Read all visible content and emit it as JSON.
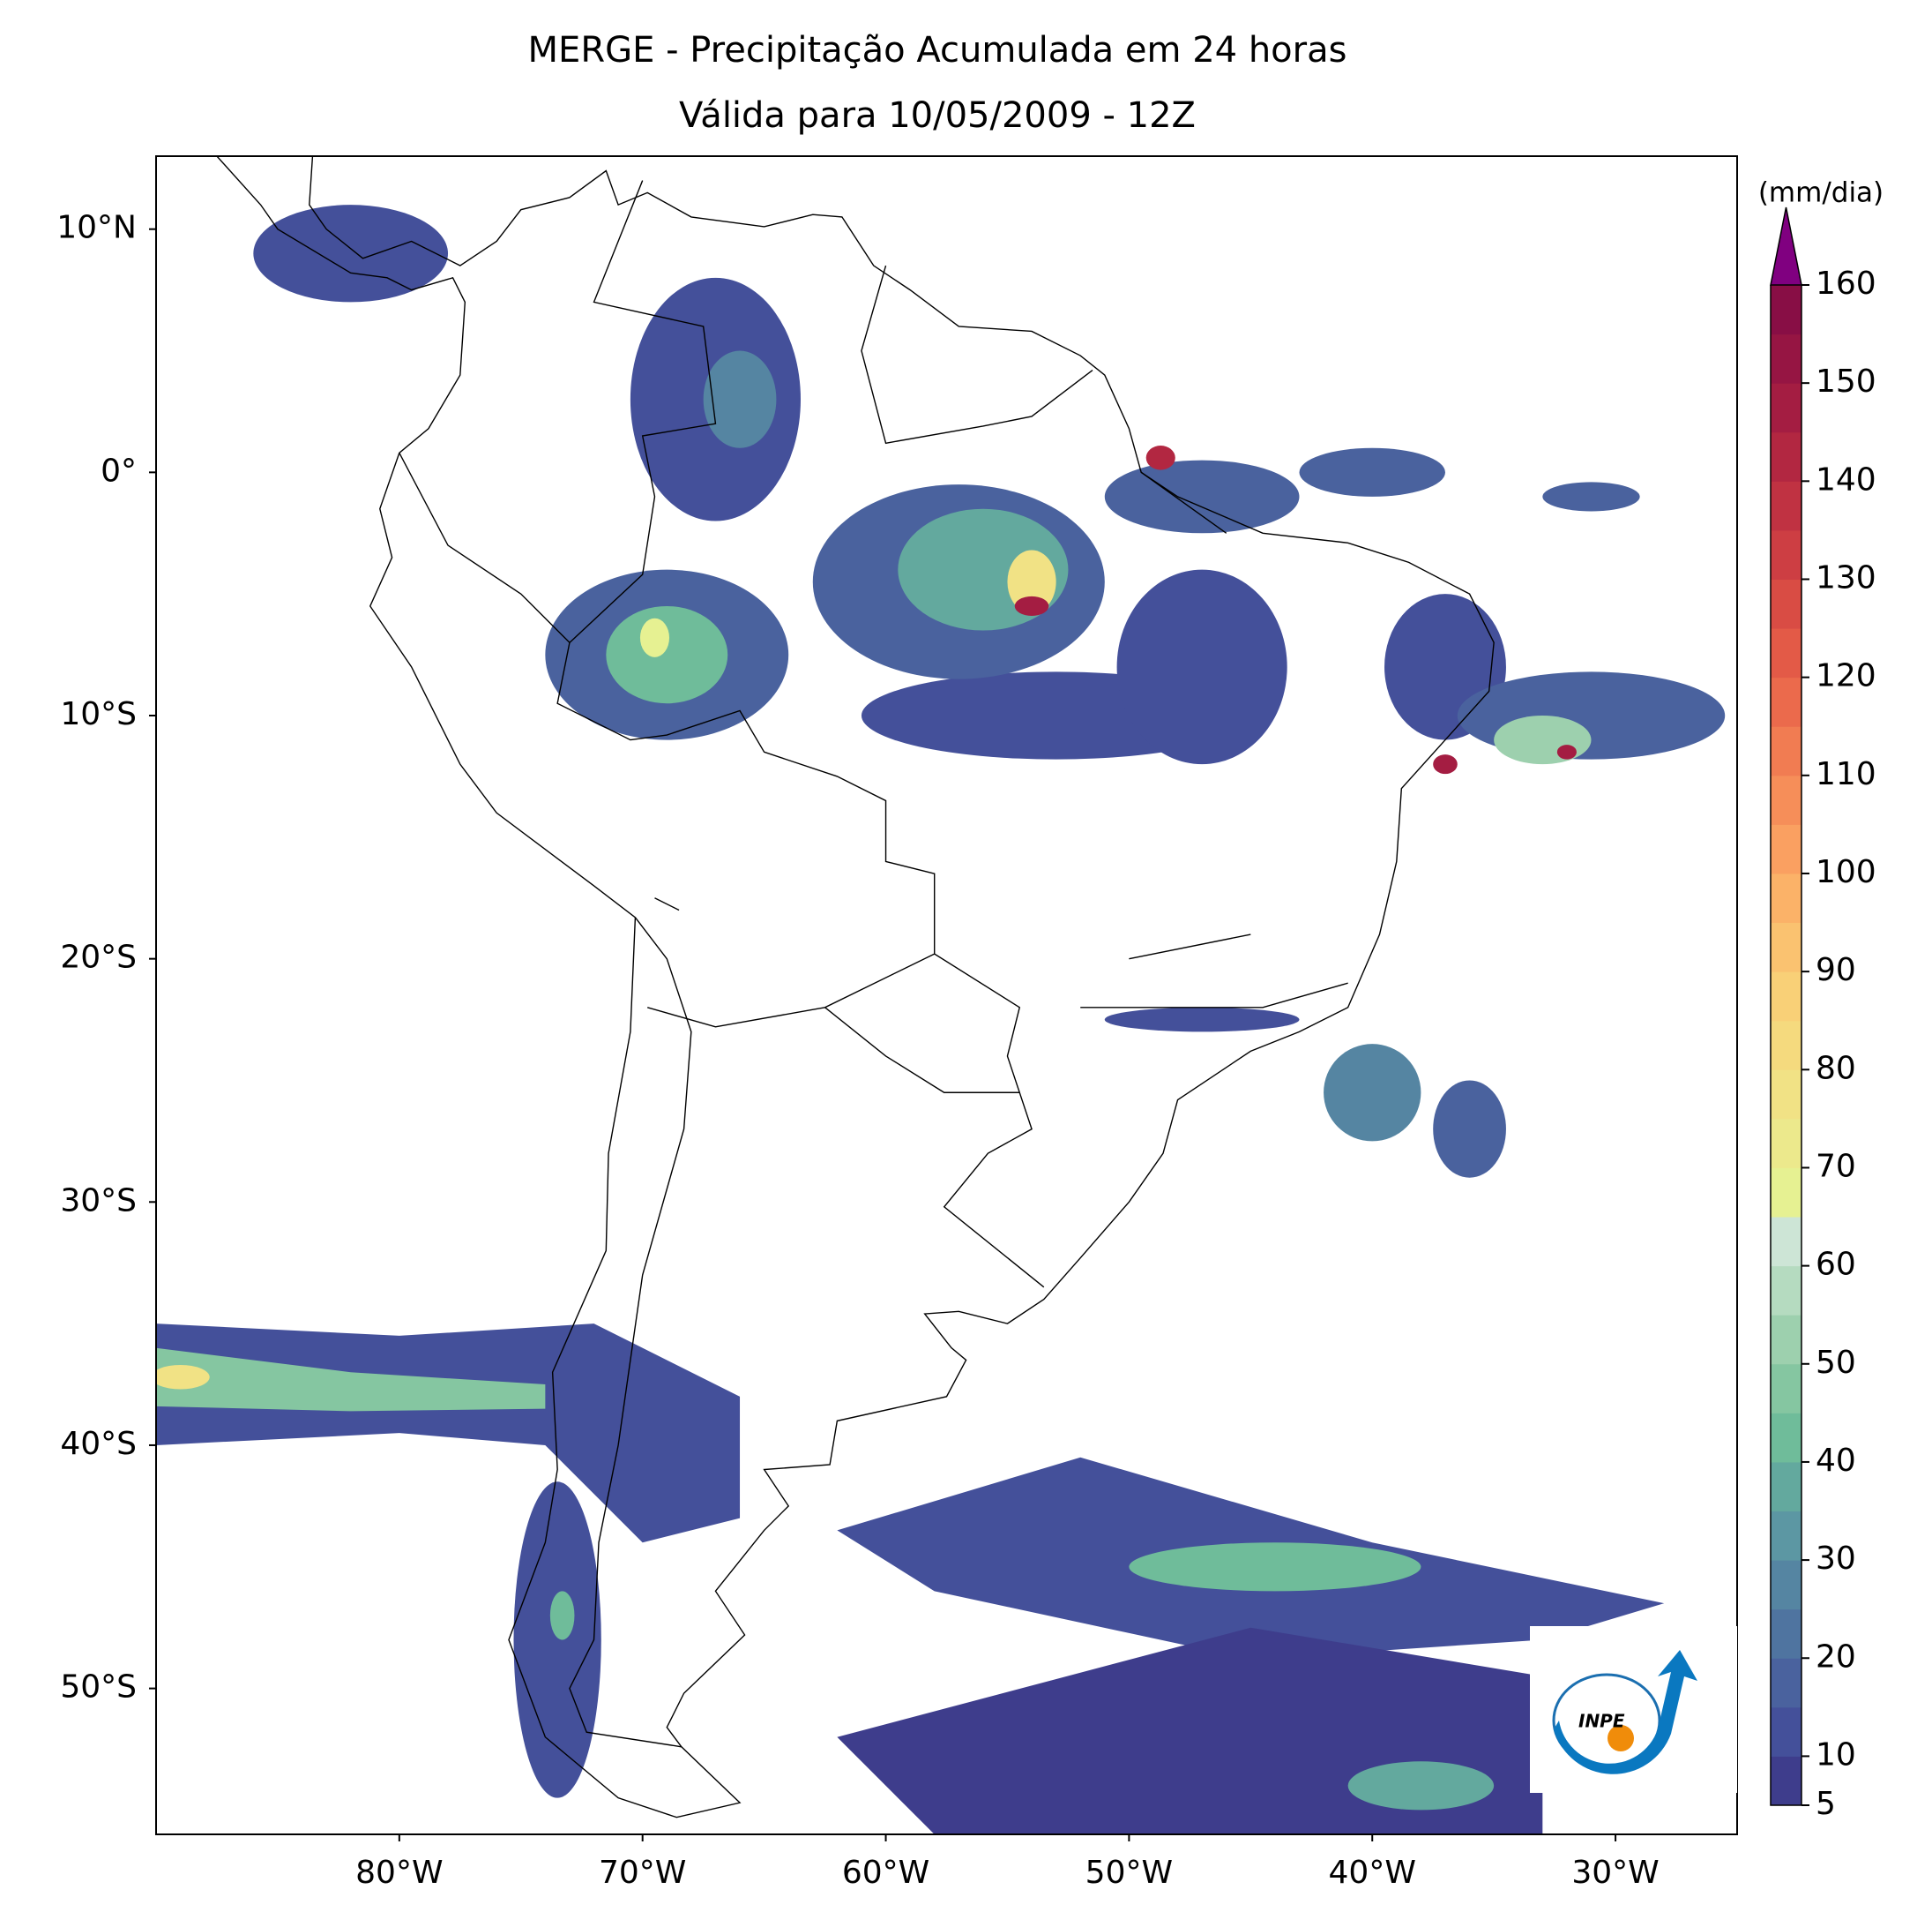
{
  "title": [
    "MERGE - Precipitação Acumulada em 24 horas",
    "Válida para 10/05/2009 - 12Z"
  ],
  "map": {
    "xlim": [
      -90,
      -25
    ],
    "ylim": [
      -56,
      13
    ],
    "xticks": [
      {
        "value": -80,
        "label": "80°W"
      },
      {
        "value": -70,
        "label": "70°W"
      },
      {
        "value": -60,
        "label": "60°W"
      },
      {
        "value": -50,
        "label": "50°W"
      },
      {
        "value": -40,
        "label": "40°W"
      },
      {
        "value": -30,
        "label": "30°W"
      }
    ],
    "yticks": [
      {
        "value": 10,
        "label": "10°N"
      },
      {
        "value": 0,
        "label": "0°"
      },
      {
        "value": -10,
        "label": "10°S"
      },
      {
        "value": -20,
        "label": "20°S"
      },
      {
        "value": -30,
        "label": "30°S"
      },
      {
        "value": -40,
        "label": "40°S"
      },
      {
        "value": -50,
        "label": "50°S"
      }
    ]
  },
  "colorbar": {
    "label": "(mm/dia)",
    "levels": [
      5,
      10,
      15,
      20,
      25,
      30,
      35,
      40,
      45,
      50,
      55,
      60,
      65,
      70,
      75,
      80,
      85,
      90,
      95,
      100,
      105,
      110,
      115,
      120,
      125,
      130,
      135,
      140,
      145,
      150,
      155,
      160
    ],
    "colors": [
      "#3e3d8c",
      "#44509a",
      "#4a629e",
      "#4f74a0",
      "#5585a2",
      "#5c97a3",
      "#63a99e",
      "#6fbc9a",
      "#85c6a1",
      "#9dd0ae",
      "#b5dbc0",
      "#cde5d6",
      "#e6f192",
      "#ece98c",
      "#f1e285",
      "#f5da7e",
      "#f9d077",
      "#fac270",
      "#fbb268",
      "#faa061",
      "#f68e59",
      "#f17c52",
      "#eb6a4c",
      "#e35a47",
      "#d94c44",
      "#cd3e43",
      "#c03242",
      "#b22741",
      "#a41d42",
      "#961543",
      "#880e45"
    ],
    "extend_color": "#800080",
    "ticks": [
      5,
      10,
      20,
      30,
      40,
      50,
      60,
      70,
      80,
      90,
      100,
      110,
      120,
      130,
      140,
      150,
      160
    ]
  },
  "logo_text": "INPE"
}
